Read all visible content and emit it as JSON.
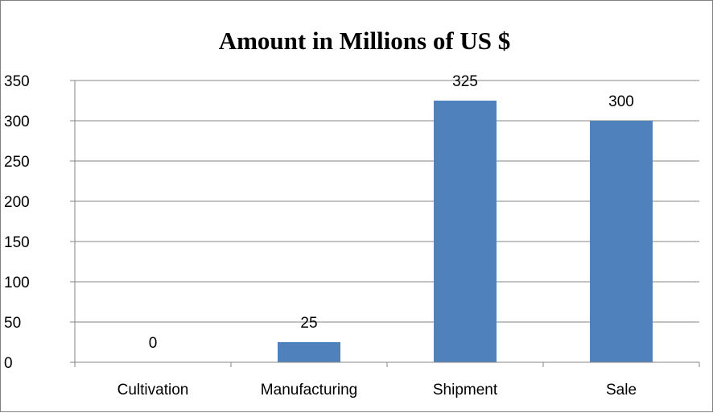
{
  "chart_data": {
    "type": "bar",
    "title": "Amount in Millions of US $",
    "xlabel": "",
    "ylabel": "",
    "categories": [
      "Cultivation",
      "Manufacturing",
      "Shipment",
      "Sale"
    ],
    "values": [
      0,
      25,
      325,
      300
    ],
    "data_labels": [
      "0",
      "25",
      "325",
      "300"
    ],
    "ylim": [
      0,
      350
    ],
    "yticks": [
      0,
      50,
      100,
      150,
      200,
      250,
      300,
      350
    ],
    "grid": true,
    "legend": "none",
    "bar_color": "#4F81BD",
    "grid_color": "#868686"
  }
}
